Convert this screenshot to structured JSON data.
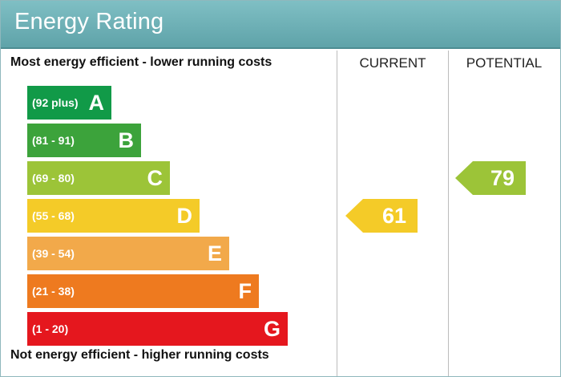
{
  "header": {
    "title": "Energy Rating"
  },
  "columns": {
    "current_label": "CURRENT",
    "potential_label": "POTENTIAL"
  },
  "notes": {
    "top": "Most energy efficient - lower running costs",
    "bottom": "Not energy efficient - higher running costs"
  },
  "chart_data": {
    "type": "bar",
    "categories": [
      "A",
      "B",
      "C",
      "D",
      "E",
      "F",
      "G"
    ],
    "ranges": [
      "(92 plus)",
      "(81 - 91)",
      "(69 - 80)",
      "(55 - 68)",
      "(39 - 54)",
      "(21 - 38)",
      "(1 - 20)"
    ],
    "band_min": [
      92,
      81,
      69,
      55,
      39,
      21,
      1
    ],
    "colors": [
      "#119a48",
      "#3ca33b",
      "#9cc438",
      "#f4cb28",
      "#f2a94a",
      "#ee7a1f",
      "#e5171e"
    ],
    "current": {
      "value": 61,
      "band": "D",
      "color": "#f4cb28"
    },
    "potential": {
      "value": 79,
      "band": "C",
      "color": "#9cc438"
    }
  }
}
